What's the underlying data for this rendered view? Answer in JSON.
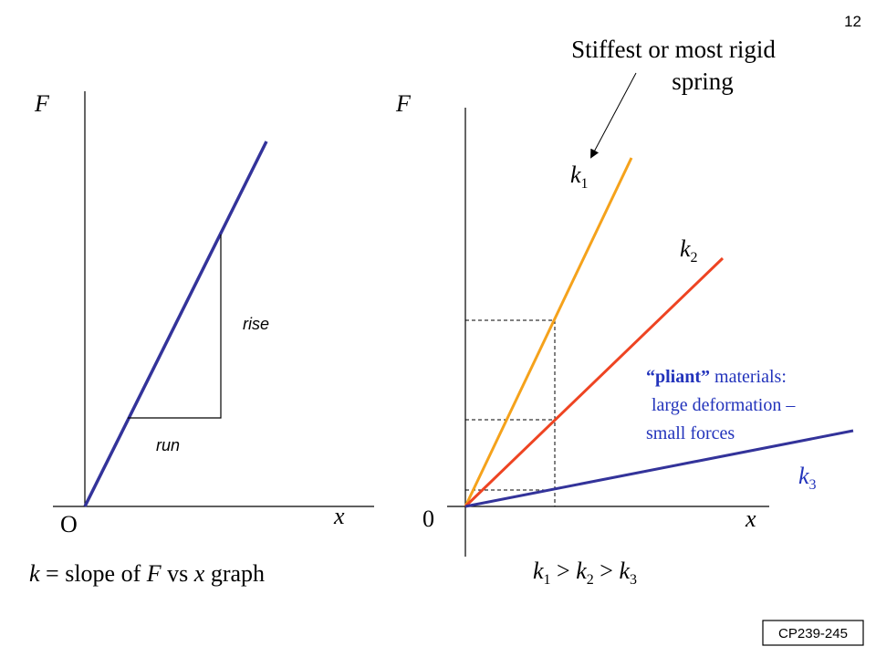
{
  "slide_number": "12",
  "course_code": "CP239-245",
  "colors": {
    "axis": "#000000",
    "k1": "#f5a21b",
    "k2": "#ee4422",
    "k3": "#33339a",
    "pliant_text": "#2233bb"
  },
  "left_graph": {
    "y_label": "F",
    "x_label": "x",
    "origin_label": "O",
    "rise_label": "rise",
    "run_label": "run",
    "caption": {
      "k": "k",
      "eq": " = slope of ",
      "F": "F",
      "vs": " vs ",
      "x": "x",
      "graph": " graph"
    }
  },
  "right_graph": {
    "y_label": "F",
    "x_label": "x",
    "origin_label": "0",
    "lines": [
      {
        "letter": "k",
        "sub": "1"
      },
      {
        "letter": "k",
        "sub": "2"
      },
      {
        "letter": "k",
        "sub": "3"
      }
    ],
    "stiffest_label": {
      "line1": "Stiffest or most rigid",
      "line2": "spring"
    },
    "pliant_note": {
      "word": "“pliant”",
      "rest1": " materials:",
      "line2": "large deformation –",
      "line3": "small forces"
    },
    "inequality": {
      "k1": "k",
      "s1": "1",
      "gt1": " > ",
      "k2": "k",
      "s2": "2",
      "gt2": " > ",
      "k3": "k",
      "s3": "3"
    }
  }
}
